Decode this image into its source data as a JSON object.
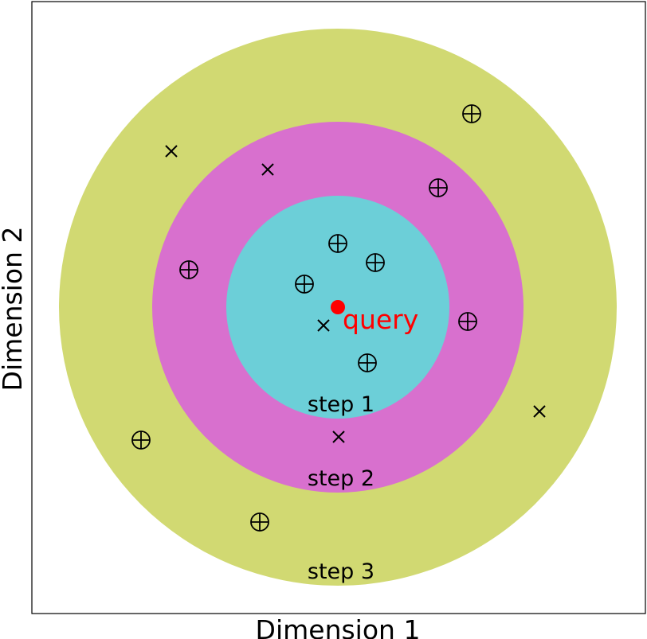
{
  "chart_data": {
    "type": "scatter",
    "xlabel": "Dimension 1",
    "ylabel": "Dimension 2",
    "query": {
      "label": "query",
      "color": "#ff0000"
    },
    "rings": [
      {
        "label": "step 3",
        "color": "#d1d972"
      },
      {
        "label": "step 2",
        "color": "#d870ce"
      },
      {
        "label": "step 1",
        "color": "#6ccfd8"
      }
    ],
    "point_types": {
      "circle_plus": "positive-marker",
      "cross": "negative-marker"
    }
  }
}
